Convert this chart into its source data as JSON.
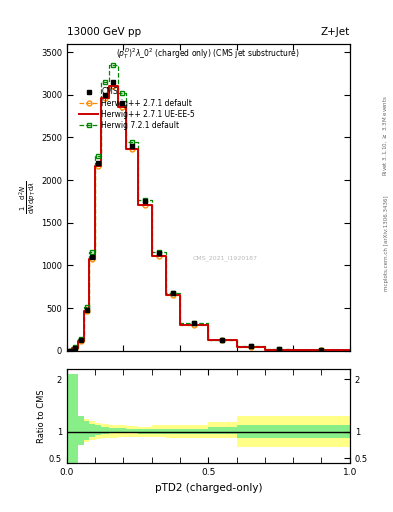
{
  "title_top": "13000 GeV pp",
  "title_right": "Z+Jet",
  "plot_title": "$(p_T^D)^2\\lambda\\_0^2$ (charged only) (CMS jet substructure)",
  "xlabel": "pTD2 (charged-only)",
  "ylabel_main": "$\\frac{1}{\\mathrm{d}N} \\frac{\\mathrm{d}^2N}{\\mathrm{d}p_T\\,\\mathrm{d}\\lambda}$",
  "ylabel_ratio": "Ratio to CMS",
  "right_label_top": "Rivet 3.1.10, $\\geq$ 3.3M events",
  "right_label_bot": "mcplots.cern.ch [arXiv:1306.3436]",
  "watermark": "CMS_2021_I1920187",
  "x_bins": [
    0.0,
    0.02,
    0.04,
    0.06,
    0.08,
    0.1,
    0.12,
    0.15,
    0.18,
    0.21,
    0.25,
    0.3,
    0.35,
    0.4,
    0.5,
    0.6,
    0.7,
    0.8,
    1.0
  ],
  "data_cms_y": [
    0,
    30,
    120,
    480,
    1100,
    2200,
    3000,
    3150,
    2900,
    2400,
    1750,
    1150,
    680,
    320,
    130,
    50,
    15,
    3
  ],
  "herwig271_default_y": [
    0,
    28,
    115,
    460,
    1080,
    2170,
    2960,
    3100,
    2860,
    2360,
    1710,
    1110,
    650,
    305,
    122,
    47,
    14,
    3
  ],
  "herwig271_ueee5_y": [
    0,
    28,
    115,
    460,
    1080,
    2170,
    2960,
    3100,
    2860,
    2360,
    1710,
    1110,
    650,
    305,
    122,
    47,
    14,
    3
  ],
  "herwig721_default_y": [
    0,
    38,
    135,
    510,
    1160,
    2280,
    3150,
    3350,
    3020,
    2450,
    1770,
    1160,
    680,
    325,
    130,
    50,
    15,
    3
  ],
  "ylim_main": [
    0,
    3600
  ],
  "ylim_ratio": [
    0.4,
    2.2
  ],
  "yticks_main": [
    0,
    500,
    1000,
    1500,
    2000,
    2500,
    3000,
    3500
  ],
  "cms_color": "#000000",
  "herwig271_default_color": "#ff8c00",
  "herwig271_ueee5_color": "#cc0000",
  "herwig721_default_color": "#008800",
  "green_band_color": "#88ee88",
  "yellow_band_color": "#ffff88",
  "ratio_bins": [
    0.0,
    0.02,
    0.04,
    0.06,
    0.08,
    0.1,
    0.12,
    0.15,
    0.18,
    0.21,
    0.25,
    0.3,
    0.35,
    0.4,
    0.5,
    0.6,
    0.7,
    0.8,
    1.0
  ],
  "ratio_green_low": [
    0.3,
    0.35,
    0.75,
    0.85,
    0.9,
    0.93,
    0.95,
    0.97,
    0.97,
    0.97,
    0.96,
    0.96,
    0.96,
    0.96,
    0.96,
    0.88,
    0.88,
    0.88
  ],
  "ratio_green_high": [
    2.1,
    2.1,
    1.3,
    1.2,
    1.15,
    1.12,
    1.1,
    1.08,
    1.07,
    1.06,
    1.05,
    1.05,
    1.05,
    1.05,
    1.1,
    1.12,
    1.12,
    1.12
  ],
  "ratio_yellow_low": [
    0.3,
    0.55,
    0.75,
    0.8,
    0.84,
    0.87,
    0.88,
    0.89,
    0.9,
    0.91,
    0.91,
    0.9,
    0.89,
    0.89,
    0.89,
    0.72,
    0.72,
    0.72
  ],
  "ratio_yellow_high": [
    2.1,
    1.85,
    1.3,
    1.25,
    1.2,
    1.17,
    1.15,
    1.13,
    1.12,
    1.11,
    1.1,
    1.12,
    1.13,
    1.13,
    1.18,
    1.3,
    1.3,
    1.3
  ]
}
